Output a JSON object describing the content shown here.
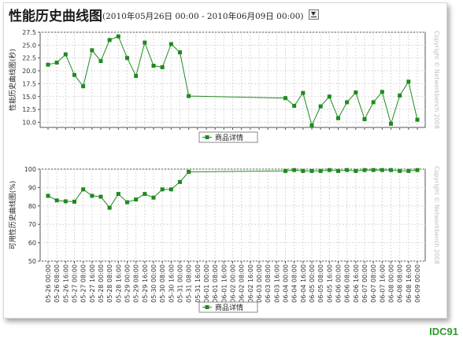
{
  "header": {
    "title": "性能历史曲线图",
    "range": "(2010年05月26日 00:00 - 2010年06月09日 00:00)"
  },
  "watermark": "IDC91",
  "colors": {
    "series": "#1e8a1e",
    "grid": "#d8d8d8",
    "axis": "#333333"
  },
  "chart_data": [
    {
      "type": "line",
      "ylabel": "性能历史曲线图(秒)",
      "copyright": "Copyright © Networkbench 2008",
      "yticks": [
        "10.0",
        "12.5",
        "15.0",
        "17.5",
        "20.0",
        "22.5",
        "25.0",
        "27.5"
      ],
      "ylim": [
        9,
        27.5
      ],
      "legend_placement": "bottom",
      "grid": true,
      "series": [
        {
          "name": "商品详情",
          "x": [
            0,
            1,
            2,
            3,
            4,
            5,
            6,
            7,
            8,
            9,
            10,
            11,
            12,
            13,
            14,
            15,
            16,
            27,
            28,
            29,
            30,
            31,
            32,
            33,
            34,
            35,
            36,
            37,
            38,
            39,
            40,
            41,
            42
          ],
          "values": [
            21.2,
            21.6,
            23.2,
            19.2,
            17.0,
            24.0,
            21.9,
            26.0,
            26.7,
            22.5,
            19.0,
            25.5,
            21.0,
            20.7,
            25.2,
            23.6,
            15.1,
            14.7,
            13.2,
            15.7,
            9.4,
            13.1,
            15.0,
            10.8,
            13.9,
            15.8,
            10.6,
            13.9,
            15.9,
            9.7,
            15.2,
            17.9,
            10.5
          ]
        }
      ]
    },
    {
      "type": "line",
      "ylabel": "可用性历史曲线图(%)",
      "copyright": "Copyright © Networkbench 2008",
      "yticks": [
        "50",
        "60",
        "70",
        "80",
        "90",
        "100"
      ],
      "ylim": [
        50,
        100
      ],
      "legend_placement": "bottom",
      "grid": true,
      "categories": [
        "05-26 00:00",
        "05-26 08:00",
        "05-26 16:00",
        "05-27 00:00",
        "05-27 08:00",
        "05-27 16:00",
        "05-28 00:00",
        "05-28 08:00",
        "05-28 16:00",
        "05-29 00:00",
        "05-29 08:00",
        "05-29 16:00",
        "05-30 00:00",
        "05-30 08:00",
        "05-30 16:00",
        "05-31 00:00",
        "05-31 08:00",
        "05-31 16:00",
        "06-01 00:00",
        "06-01 08:00",
        "06-01 16:00",
        "06-02 00:00",
        "06-02 08:00",
        "06-02 16:00",
        "06-03 00:00",
        "06-03 08:00",
        "06-03 16:00",
        "06-04 00:00",
        "06-04 08:00",
        "06-04 16:00",
        "06-05 00:00",
        "06-05 08:00",
        "06-05 16:00",
        "06-06 00:00",
        "06-06 08:00",
        "06-06 16:00",
        "06-07 00:00",
        "06-07 08:00",
        "06-07 16:00",
        "06-08 00:00",
        "06-08 08:00",
        "06-08 16:00",
        "06-09 00:00"
      ],
      "series": [
        {
          "name": "商品详情",
          "x": [
            0,
            1,
            2,
            3,
            4,
            5,
            6,
            7,
            8,
            9,
            10,
            11,
            12,
            13,
            14,
            15,
            16,
            27,
            28,
            29,
            30,
            31,
            32,
            33,
            34,
            35,
            36,
            37,
            38,
            39,
            40,
            41,
            42
          ],
          "values": [
            85.5,
            83.0,
            82.5,
            82.3,
            89.0,
            85.5,
            85.0,
            79.0,
            86.5,
            82.0,
            83.5,
            86.5,
            84.5,
            89.0,
            89.0,
            93.0,
            98.5,
            99.0,
            99.5,
            99.0,
            99.0,
            99.0,
            99.5,
            99.0,
            99.5,
            99.0,
            99.5,
            99.5,
            99.5,
            99.5,
            99.0,
            99.0,
            99.5
          ]
        }
      ]
    }
  ]
}
